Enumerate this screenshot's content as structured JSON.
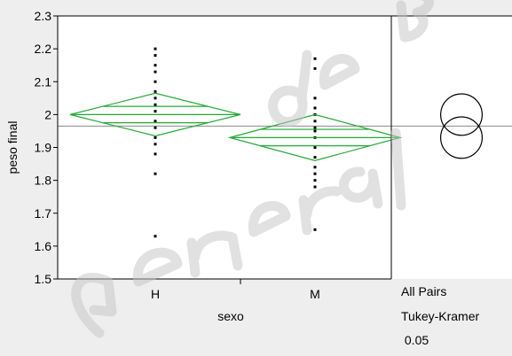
{
  "chart_data": {
    "type": "scatter",
    "subtype": "oneway-anova-means-diamonds",
    "title": "",
    "ylabel": "peso final",
    "xlabel": "sexo",
    "ylim": [
      1.5,
      2.3
    ],
    "yticks": [
      "1.5",
      "1.6",
      "1.7",
      "1.8",
      "1.9",
      "2",
      "2.1",
      "2.2",
      "2.3"
    ],
    "grid": false,
    "categories": [
      "H",
      "M"
    ],
    "groups": [
      {
        "name": "H",
        "mean": 2.0,
        "ci_lower": 1.935,
        "ci_upper": 2.065,
        "overlap_lower": 1.975,
        "overlap_upper": 2.025,
        "points": [
          2.2,
          2.18,
          2.15,
          2.13,
          2.1,
          2.07,
          2.05,
          2.03,
          2.01,
          1.98,
          1.96,
          1.93,
          1.91,
          1.88,
          1.82,
          1.63
        ]
      },
      {
        "name": "M",
        "mean": 1.93,
        "ci_lower": 1.86,
        "ci_upper": 2.0,
        "overlap_lower": 1.905,
        "overlap_upper": 1.955,
        "points": [
          2.17,
          2.14,
          2.05,
          2.02,
          2.0,
          1.98,
          1.96,
          1.95,
          1.93,
          1.9,
          1.87,
          1.84,
          1.82,
          1.8,
          1.78,
          1.65
        ]
      }
    ],
    "grand_mean": 1.965,
    "comparison": {
      "labels": [
        "All Pairs",
        "Tukey-Kramer",
        " 0.05"
      ],
      "circles": [
        {
          "center": 2.0,
          "radius": 0.063
        },
        {
          "center": 1.93,
          "radius": 0.063
        }
      ]
    },
    "colors": {
      "diamond": "#22aa33",
      "points": "#000000",
      "axis": "#000000",
      "background": "#eeeeee",
      "plot_bg": "#ffffff"
    }
  }
}
